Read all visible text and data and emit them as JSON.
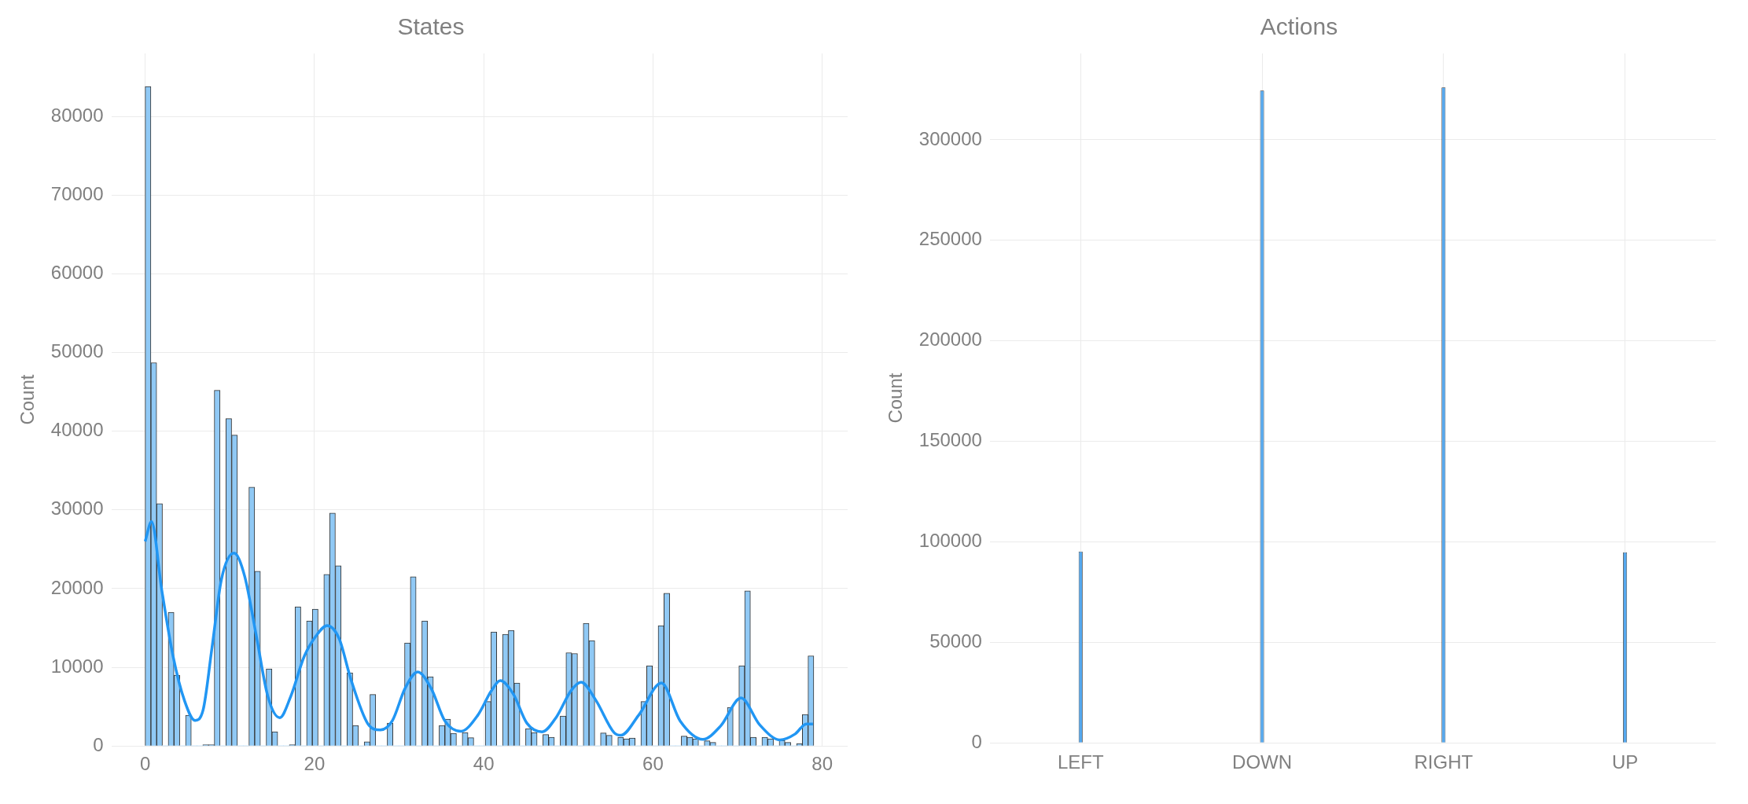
{
  "chart_data": [
    {
      "type": "histogram",
      "title": "States",
      "ylabel": "Count",
      "bins": [
        0,
        0.68,
        1.36,
        2.04,
        2.72,
        3.41,
        4.09,
        4.77,
        5.45,
        6.13,
        6.81,
        7.49,
        8.17,
        8.85,
        9.53,
        10.22,
        10.9,
        11.58,
        12.26,
        12.94,
        13.62,
        14.3,
        14.98,
        15.66,
        16.34,
        17.03,
        17.71,
        18.39,
        19.07,
        19.75,
        20.43,
        21.11,
        21.79,
        22.47,
        23.16,
        23.84,
        24.52,
        25.2,
        25.88,
        26.56,
        27.24,
        27.92,
        28.6,
        29.28,
        29.97,
        30.65,
        31.33,
        32.01,
        32.69,
        33.37,
        34.05,
        34.73,
        35.41,
        36.09,
        36.78,
        37.46,
        38.14,
        38.82,
        39.5,
        40.18,
        40.86,
        41.54,
        42.22,
        42.91,
        43.59,
        44.27,
        44.95,
        45.63,
        46.31,
        46.99,
        47.67,
        48.35,
        49.03,
        49.72,
        50.4,
        51.08,
        51.76,
        52.44,
        53.12,
        53.8,
        54.48,
        55.16,
        55.84,
        56.53,
        57.21,
        57.89,
        58.57,
        59.25,
        59.93,
        60.61,
        61.29,
        61.97,
        62.66,
        63.34,
        64.02,
        64.7,
        65.38,
        66.06,
        66.74,
        67.42,
        68.1,
        68.78,
        69.47,
        70.15,
        70.83,
        71.51,
        72.19,
        72.87,
        73.55,
        74.23,
        74.91,
        75.59,
        76.28,
        76.96,
        77.64,
        78.32,
        79
      ],
      "series": [
        {
          "type": "histogram",
          "color": "#90c9f5",
          "values": [
            83800,
            48700,
            30800,
            0,
            17000,
            9000,
            0,
            3900,
            0,
            0,
            150,
            150,
            45200,
            0,
            41600,
            39500,
            0,
            0,
            32900,
            22200,
            0,
            9800,
            1800,
            0,
            0,
            170,
            17700,
            0,
            15900,
            17400,
            0,
            21800,
            29600,
            22900,
            0,
            9300,
            2600,
            0,
            540,
            6550,
            0,
            0,
            2900,
            0,
            0,
            13100,
            21500,
            0,
            15900,
            8800,
            0,
            2600,
            3400,
            1600,
            0,
            1700,
            1050,
            0,
            0,
            5650,
            14500,
            0,
            14200,
            14700,
            8000,
            0,
            2200,
            1700,
            0,
            1450,
            1100,
            0,
            3800,
            11850,
            11750,
            0,
            15600,
            13400,
            0,
            1650,
            1350,
            0,
            1100,
            900,
            1000,
            0,
            5650,
            10200,
            0,
            15300,
            19400,
            0,
            0,
            1250,
            1100,
            900,
            0,
            650,
            450,
            0,
            0,
            4900,
            0,
            10200,
            19700,
            1100,
            0,
            1100,
            900,
            0,
            700,
            450,
            0,
            300,
            4000,
            11450
          ]
        },
        {
          "type": "line",
          "color": "#2196f3",
          "x": [
            0,
            0.75,
            1.95,
            3.3,
            4.67,
            5.9,
            6.84,
            7.9,
            9.0,
            10.5,
            11.75,
            13.1,
            14.5,
            15.9,
            17.2,
            18.8,
            20.2,
            21.5,
            22.9,
            24.3,
            26.3,
            27.8,
            29.2,
            30.7,
            32.2,
            33.8,
            35.4,
            37.3,
            39.3,
            40.9,
            41.95,
            43.5,
            45.1,
            46.9,
            48.6,
            50.3,
            51.5,
            53.2,
            55.4,
            56.2,
            58.3,
            61.0,
            63.2,
            65.9,
            68.0,
            70.4,
            72.6,
            75.0,
            76.8,
            78.1,
            78.9
          ],
          "values": [
            26000,
            28500,
            19900,
            11400,
            5700,
            3250,
            4550,
            12500,
            21100,
            24500,
            21600,
            14200,
            6300,
            3600,
            6300,
            11400,
            14000,
            15300,
            13700,
            8500,
            2850,
            2040,
            3200,
            7300,
            9400,
            7300,
            3200,
            1870,
            3900,
            7000,
            8300,
            6600,
            2900,
            1800,
            3700,
            7000,
            8100,
            5900,
            1700,
            1360,
            3900,
            8000,
            3200,
            850,
            2550,
            6100,
            2700,
            780,
            1530,
            2800,
            2800
          ]
        }
      ],
      "xlim": [
        -4,
        83
      ],
      "xticks": [
        0,
        20,
        40,
        60,
        80
      ],
      "ylim": [
        0,
        88000
      ],
      "yticks": [
        0,
        10000,
        20000,
        30000,
        40000,
        50000,
        60000,
        70000,
        80000
      ],
      "grid": true
    },
    {
      "type": "bar",
      "title": "Actions",
      "ylabel": "Count",
      "categories": [
        "LEFT",
        "DOWN",
        "RIGHT",
        "UP"
      ],
      "values": [
        95200,
        324500,
        326100,
        94800
      ],
      "color": "#55a8ee",
      "ylim": [
        0,
        343000
      ],
      "yticks": [
        0,
        50000,
        100000,
        150000,
        200000,
        250000,
        300000
      ],
      "grid": true
    }
  ]
}
